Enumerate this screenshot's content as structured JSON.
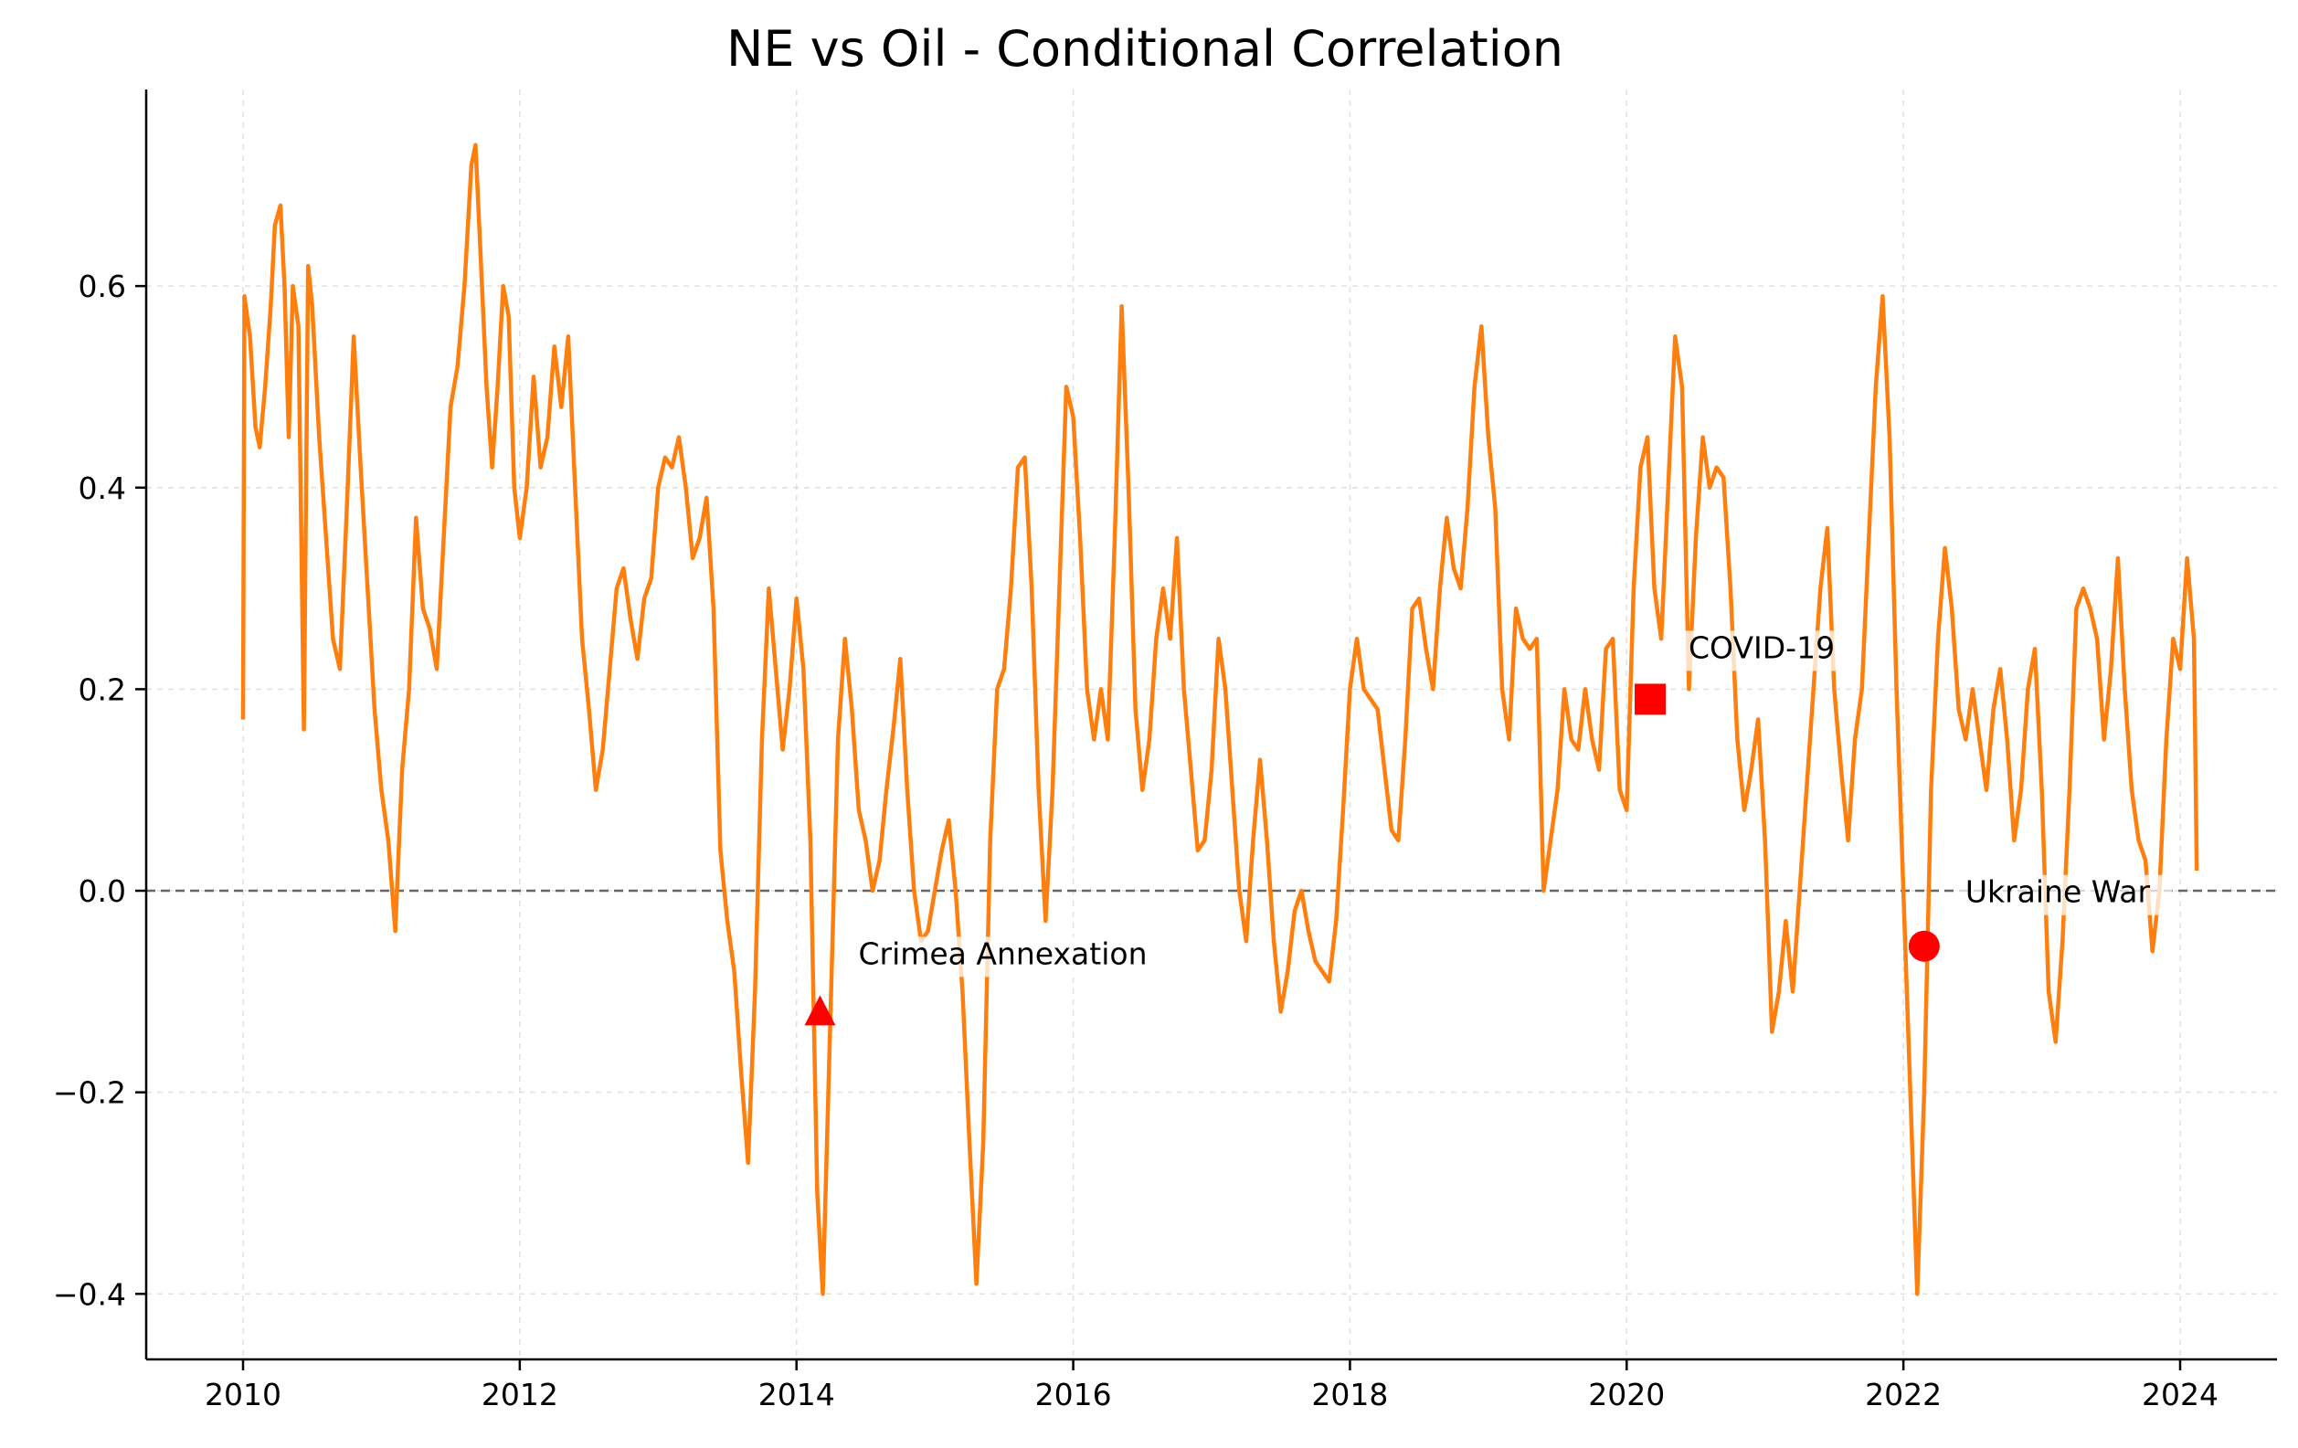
{
  "chart_data": {
    "type": "line",
    "title": "NE vs Oil - Conditional Correlation",
    "xlabel": "",
    "ylabel": "",
    "x_ticks": [
      "2010",
      "2012",
      "2014",
      "2016",
      "2018",
      "2020",
      "2022",
      "2024"
    ],
    "y_ticks": [
      "−0.4",
      "−0.2",
      "0.0",
      "0.2",
      "0.4",
      "0.6"
    ],
    "x_range": [
      2009.3,
      2024.7
    ],
    "ylim": [
      -0.465,
      0.795
    ],
    "grid": true,
    "reference_line": {
      "y": 0.0,
      "style": "dashed",
      "color": "#666666"
    },
    "series": [
      {
        "color": "#ff7f0e",
        "points": [
          [
            2010.0,
            0.17
          ],
          [
            2010.01,
            0.59
          ],
          [
            2010.05,
            0.55
          ],
          [
            2010.09,
            0.46
          ],
          [
            2010.12,
            0.44
          ],
          [
            2010.16,
            0.5
          ],
          [
            2010.2,
            0.58
          ],
          [
            2010.23,
            0.66
          ],
          [
            2010.27,
            0.68
          ],
          [
            2010.3,
            0.6
          ],
          [
            2010.33,
            0.45
          ],
          [
            2010.36,
            0.6
          ],
          [
            2010.4,
            0.56
          ],
          [
            2010.44,
            0.16
          ],
          [
            2010.47,
            0.62
          ],
          [
            2010.5,
            0.58
          ],
          [
            2010.55,
            0.45
          ],
          [
            2010.6,
            0.35
          ],
          [
            2010.65,
            0.25
          ],
          [
            2010.7,
            0.22
          ],
          [
            2010.75,
            0.38
          ],
          [
            2010.8,
            0.55
          ],
          [
            2010.85,
            0.42
          ],
          [
            2010.9,
            0.3
          ],
          [
            2010.95,
            0.18
          ],
          [
            2011.0,
            0.1
          ],
          [
            2011.05,
            0.05
          ],
          [
            2011.1,
            -0.04
          ],
          [
            2011.15,
            0.12
          ],
          [
            2011.2,
            0.2
          ],
          [
            2011.25,
            0.37
          ],
          [
            2011.3,
            0.28
          ],
          [
            2011.35,
            0.26
          ],
          [
            2011.4,
            0.22
          ],
          [
            2011.45,
            0.35
          ],
          [
            2011.5,
            0.48
          ],
          [
            2011.55,
            0.52
          ],
          [
            2011.6,
            0.6
          ],
          [
            2011.65,
            0.72
          ],
          [
            2011.68,
            0.74
          ],
          [
            2011.72,
            0.62
          ],
          [
            2011.76,
            0.5
          ],
          [
            2011.8,
            0.42
          ],
          [
            2011.84,
            0.5
          ],
          [
            2011.88,
            0.6
          ],
          [
            2011.92,
            0.57
          ],
          [
            2011.96,
            0.4
          ],
          [
            2012.0,
            0.35
          ],
          [
            2012.05,
            0.4
          ],
          [
            2012.1,
            0.51
          ],
          [
            2012.15,
            0.42
          ],
          [
            2012.2,
            0.45
          ],
          [
            2012.25,
            0.54
          ],
          [
            2012.3,
            0.48
          ],
          [
            2012.35,
            0.55
          ],
          [
            2012.4,
            0.4
          ],
          [
            2012.45,
            0.25
          ],
          [
            2012.5,
            0.18
          ],
          [
            2012.55,
            0.1
          ],
          [
            2012.6,
            0.14
          ],
          [
            2012.65,
            0.22
          ],
          [
            2012.7,
            0.3
          ],
          [
            2012.75,
            0.32
          ],
          [
            2012.8,
            0.27
          ],
          [
            2012.85,
            0.23
          ],
          [
            2012.9,
            0.29
          ],
          [
            2012.95,
            0.31
          ],
          [
            2013.0,
            0.4
          ],
          [
            2013.05,
            0.43
          ],
          [
            2013.1,
            0.42
          ],
          [
            2013.15,
            0.45
          ],
          [
            2013.2,
            0.4
          ],
          [
            2013.25,
            0.33
          ],
          [
            2013.3,
            0.35
          ],
          [
            2013.35,
            0.39
          ],
          [
            2013.4,
            0.28
          ],
          [
            2013.45,
            0.04
          ],
          [
            2013.5,
            -0.03
          ],
          [
            2013.55,
            -0.08
          ],
          [
            2013.6,
            -0.18
          ],
          [
            2013.65,
            -0.27
          ],
          [
            2013.7,
            -0.1
          ],
          [
            2013.75,
            0.15
          ],
          [
            2013.8,
            0.3
          ],
          [
            2013.85,
            0.22
          ],
          [
            2013.9,
            0.14
          ],
          [
            2013.95,
            0.2
          ],
          [
            2014.0,
            0.29
          ],
          [
            2014.05,
            0.22
          ],
          [
            2014.1,
            0.05
          ],
          [
            2014.15,
            -0.3
          ],
          [
            2014.19,
            -0.4
          ],
          [
            2014.25,
            -0.1
          ],
          [
            2014.3,
            0.15
          ],
          [
            2014.35,
            0.25
          ],
          [
            2014.4,
            0.18
          ],
          [
            2014.45,
            0.08
          ],
          [
            2014.5,
            0.05
          ],
          [
            2014.55,
            0.0
          ],
          [
            2014.6,
            0.03
          ],
          [
            2014.65,
            0.1
          ],
          [
            2014.7,
            0.16
          ],
          [
            2014.75,
            0.23
          ],
          [
            2014.8,
            0.1
          ],
          [
            2014.85,
            0.0
          ],
          [
            2014.9,
            -0.05
          ],
          [
            2014.95,
            -0.04
          ],
          [
            2015.0,
            0.0
          ],
          [
            2015.05,
            0.04
          ],
          [
            2015.1,
            0.07
          ],
          [
            2015.15,
            0.0
          ],
          [
            2015.2,
            -0.1
          ],
          [
            2015.25,
            -0.25
          ],
          [
            2015.3,
            -0.39
          ],
          [
            2015.35,
            -0.25
          ],
          [
            2015.4,
            0.05
          ],
          [
            2015.45,
            0.2
          ],
          [
            2015.5,
            0.22
          ],
          [
            2015.55,
            0.3
          ],
          [
            2015.6,
            0.42
          ],
          [
            2015.65,
            0.43
          ],
          [
            2015.7,
            0.3
          ],
          [
            2015.75,
            0.1
          ],
          [
            2015.8,
            -0.03
          ],
          [
            2015.85,
            0.1
          ],
          [
            2015.9,
            0.3
          ],
          [
            2015.95,
            0.5
          ],
          [
            2016.0,
            0.47
          ],
          [
            2016.05,
            0.35
          ],
          [
            2016.1,
            0.2
          ],
          [
            2016.15,
            0.15
          ],
          [
            2016.2,
            0.2
          ],
          [
            2016.25,
            0.15
          ],
          [
            2016.3,
            0.35
          ],
          [
            2016.35,
            0.58
          ],
          [
            2016.4,
            0.4
          ],
          [
            2016.45,
            0.18
          ],
          [
            2016.5,
            0.1
          ],
          [
            2016.55,
            0.15
          ],
          [
            2016.6,
            0.25
          ],
          [
            2016.65,
            0.3
          ],
          [
            2016.7,
            0.25
          ],
          [
            2016.75,
            0.35
          ],
          [
            2016.8,
            0.2
          ],
          [
            2016.85,
            0.12
          ],
          [
            2016.9,
            0.04
          ],
          [
            2016.95,
            0.05
          ],
          [
            2017.0,
            0.12
          ],
          [
            2017.05,
            0.25
          ],
          [
            2017.1,
            0.2
          ],
          [
            2017.15,
            0.1
          ],
          [
            2017.2,
            0.0
          ],
          [
            2017.25,
            -0.05
          ],
          [
            2017.3,
            0.05
          ],
          [
            2017.35,
            0.13
          ],
          [
            2017.4,
            0.05
          ],
          [
            2017.45,
            -0.05
          ],
          [
            2017.5,
            -0.12
          ],
          [
            2017.55,
            -0.08
          ],
          [
            2017.6,
            -0.02
          ],
          [
            2017.65,
            0.0
          ],
          [
            2017.7,
            -0.04
          ],
          [
            2017.75,
            -0.07
          ],
          [
            2017.8,
            -0.08
          ],
          [
            2017.85,
            -0.09
          ],
          [
            2017.9,
            -0.03
          ],
          [
            2017.95,
            0.08
          ],
          [
            2018.0,
            0.2
          ],
          [
            2018.05,
            0.25
          ],
          [
            2018.1,
            0.2
          ],
          [
            2018.15,
            0.19
          ],
          [
            2018.2,
            0.18
          ],
          [
            2018.25,
            0.12
          ],
          [
            2018.3,
            0.06
          ],
          [
            2018.35,
            0.05
          ],
          [
            2018.4,
            0.15
          ],
          [
            2018.45,
            0.28
          ],
          [
            2018.5,
            0.29
          ],
          [
            2018.55,
            0.24
          ],
          [
            2018.6,
            0.2
          ],
          [
            2018.65,
            0.3
          ],
          [
            2018.7,
            0.37
          ],
          [
            2018.75,
            0.32
          ],
          [
            2018.8,
            0.3
          ],
          [
            2018.85,
            0.38
          ],
          [
            2018.9,
            0.5
          ],
          [
            2018.95,
            0.56
          ],
          [
            2019.0,
            0.45
          ],
          [
            2019.05,
            0.38
          ],
          [
            2019.1,
            0.2
          ],
          [
            2019.15,
            0.15
          ],
          [
            2019.2,
            0.28
          ],
          [
            2019.25,
            0.25
          ],
          [
            2019.3,
            0.24
          ],
          [
            2019.35,
            0.25
          ],
          [
            2019.4,
            0.0
          ],
          [
            2019.45,
            0.05
          ],
          [
            2019.5,
            0.1
          ],
          [
            2019.55,
            0.2
          ],
          [
            2019.6,
            0.15
          ],
          [
            2019.65,
            0.14
          ],
          [
            2019.7,
            0.2
          ],
          [
            2019.75,
            0.15
          ],
          [
            2019.8,
            0.12
          ],
          [
            2019.85,
            0.24
          ],
          [
            2019.9,
            0.25
          ],
          [
            2019.95,
            0.1
          ],
          [
            2020.0,
            0.08
          ],
          [
            2020.05,
            0.3
          ],
          [
            2020.1,
            0.42
          ],
          [
            2020.15,
            0.45
          ],
          [
            2020.2,
            0.3
          ],
          [
            2020.25,
            0.25
          ],
          [
            2020.3,
            0.4
          ],
          [
            2020.35,
            0.55
          ],
          [
            2020.4,
            0.5
          ],
          [
            2020.45,
            0.2
          ],
          [
            2020.5,
            0.35
          ],
          [
            2020.55,
            0.45
          ],
          [
            2020.6,
            0.4
          ],
          [
            2020.65,
            0.42
          ],
          [
            2020.7,
            0.41
          ],
          [
            2020.75,
            0.3
          ],
          [
            2020.8,
            0.15
          ],
          [
            2020.85,
            0.08
          ],
          [
            2020.9,
            0.12
          ],
          [
            2020.95,
            0.17
          ],
          [
            2021.0,
            0.05
          ],
          [
            2021.05,
            -0.14
          ],
          [
            2021.1,
            -0.1
          ],
          [
            2021.15,
            -0.03
          ],
          [
            2021.2,
            -0.1
          ],
          [
            2021.25,
            0.0
          ],
          [
            2021.3,
            0.1
          ],
          [
            2021.35,
            0.2
          ],
          [
            2021.4,
            0.3
          ],
          [
            2021.45,
            0.36
          ],
          [
            2021.5,
            0.2
          ],
          [
            2021.55,
            0.12
          ],
          [
            2021.6,
            0.05
          ],
          [
            2021.65,
            0.15
          ],
          [
            2021.7,
            0.2
          ],
          [
            2021.75,
            0.35
          ],
          [
            2021.8,
            0.5
          ],
          [
            2021.85,
            0.59
          ],
          [
            2021.9,
            0.45
          ],
          [
            2021.95,
            0.2
          ],
          [
            2022.0,
            0.0
          ],
          [
            2022.05,
            -0.2
          ],
          [
            2022.1,
            -0.4
          ],
          [
            2022.15,
            -0.2
          ],
          [
            2022.2,
            0.1
          ],
          [
            2022.25,
            0.25
          ],
          [
            2022.3,
            0.34
          ],
          [
            2022.35,
            0.28
          ],
          [
            2022.4,
            0.18
          ],
          [
            2022.45,
            0.15
          ],
          [
            2022.5,
            0.2
          ],
          [
            2022.55,
            0.15
          ],
          [
            2022.6,
            0.1
          ],
          [
            2022.65,
            0.18
          ],
          [
            2022.7,
            0.22
          ],
          [
            2022.75,
            0.15
          ],
          [
            2022.8,
            0.05
          ],
          [
            2022.85,
            0.1
          ],
          [
            2022.9,
            0.2
          ],
          [
            2022.95,
            0.24
          ],
          [
            2023.0,
            0.1
          ],
          [
            2023.05,
            -0.1
          ],
          [
            2023.1,
            -0.15
          ],
          [
            2023.15,
            -0.05
          ],
          [
            2023.2,
            0.1
          ],
          [
            2023.25,
            0.28
          ],
          [
            2023.3,
            0.3
          ],
          [
            2023.35,
            0.28
          ],
          [
            2023.4,
            0.25
          ],
          [
            2023.45,
            0.15
          ],
          [
            2023.5,
            0.22
          ],
          [
            2023.55,
            0.33
          ],
          [
            2023.6,
            0.2
          ],
          [
            2023.65,
            0.1
          ],
          [
            2023.7,
            0.05
          ],
          [
            2023.75,
            0.03
          ],
          [
            2023.8,
            -0.06
          ],
          [
            2023.85,
            0.0
          ],
          [
            2023.9,
            0.15
          ],
          [
            2023.95,
            0.25
          ],
          [
            2024.0,
            0.22
          ],
          [
            2024.05,
            0.33
          ],
          [
            2024.1,
            0.25
          ],
          [
            2024.12,
            0.02
          ]
        ]
      }
    ],
    "annotations": [
      {
        "label": "Crimea Annexation",
        "x": 2014.17,
        "y": -0.12,
        "marker": "triangle",
        "color": "#ff0000"
      },
      {
        "label": "COVID-19",
        "x": 2020.17,
        "y": 0.19,
        "marker": "square",
        "color": "#ff0000"
      },
      {
        "label": "Ukraine War",
        "x": 2022.15,
        "y": -0.055,
        "marker": "circle",
        "color": "#ff0000"
      }
    ]
  }
}
